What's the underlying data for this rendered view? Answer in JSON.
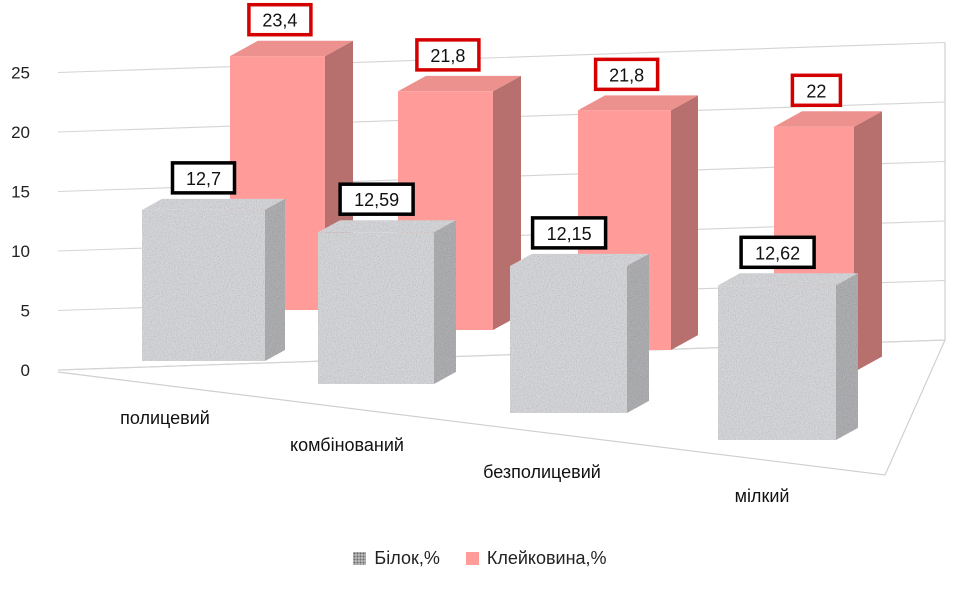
{
  "chart_data": {
    "type": "bar",
    "categories": [
      "полицевий",
      "комбінований",
      "безполицевий",
      "мілкий"
    ],
    "series": [
      {
        "name": "Білок,%",
        "values": [
          12.7,
          12.59,
          12.15,
          12.62
        ],
        "labels": [
          "12,7",
          "12,59",
          "12,15",
          "12,62"
        ],
        "color": "#c8c8c8",
        "label_border": "#000000"
      },
      {
        "name": "Клейковина,%",
        "values": [
          23.4,
          21.8,
          21.8,
          22
        ],
        "labels": [
          "23,4",
          "21,8",
          "21,8",
          "22"
        ],
        "color": "#ff9c9a",
        "label_border": "#d40000"
      }
    ],
    "yticks": [
      0,
      5,
      10,
      15,
      20,
      25
    ],
    "ylim": [
      0,
      25
    ],
    "grid": true,
    "legend": "bottom",
    "title": "",
    "xlabel": "",
    "ylabel": ""
  }
}
